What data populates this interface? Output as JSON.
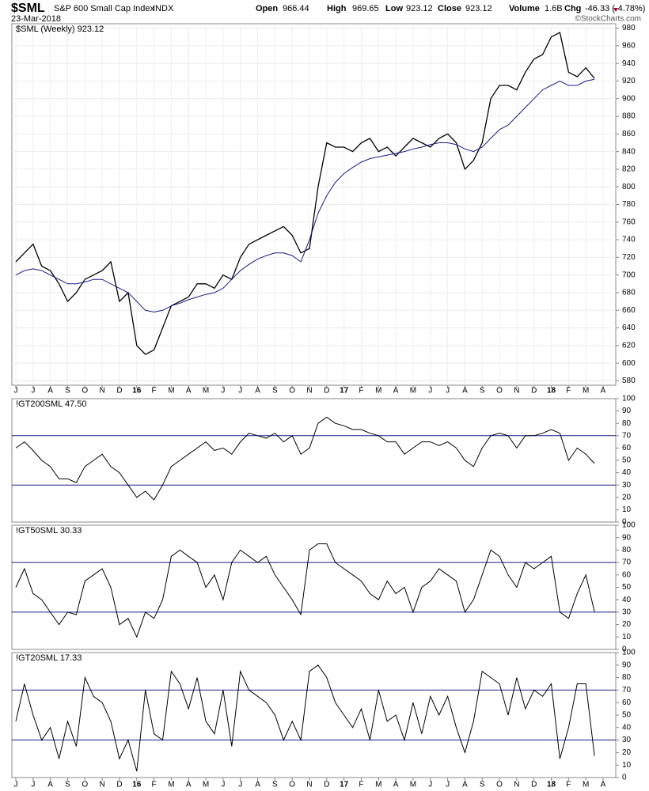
{
  "header": {
    "symbol": "$SML",
    "name": "S&P 600 Small Cap Index",
    "exchange": "INDX",
    "date": "23-Mar-2018",
    "stats": [
      {
        "label": "Open",
        "value": "966.44"
      },
      {
        "label": "High",
        "value": "969.65"
      },
      {
        "label": "Low",
        "value": "923.12"
      },
      {
        "label": "Close",
        "value": "923.12"
      },
      {
        "label": "Volume",
        "value": "1.6B"
      },
      {
        "label": "Chg",
        "value": "-46.33 (-4.78%)"
      }
    ],
    "credit": "©StockCharts.com"
  },
  "chart_data": [
    {
      "type": "line",
      "grid": true,
      "categories": [
        "J",
        null,
        "J",
        null,
        "A",
        null,
        "S",
        null,
        "O",
        null,
        "N",
        null,
        "D",
        null,
        "16",
        null,
        "F",
        null,
        "M",
        null,
        "A",
        null,
        "M",
        null,
        "J",
        null,
        "J",
        null,
        "A",
        null,
        "S",
        null,
        "O",
        null,
        "N",
        null,
        "D",
        null,
        "17",
        null,
        "F",
        null,
        "M",
        null,
        "A",
        null,
        "M",
        null,
        "J",
        null,
        "J",
        null,
        "A",
        null,
        "S",
        null,
        "O",
        null,
        "N",
        null,
        "D",
        null,
        "18",
        null,
        "F",
        null,
        "M",
        null,
        "A"
      ],
      "ylim": [
        575,
        985
      ],
      "yticks": [
        580,
        600,
        620,
        640,
        660,
        680,
        700,
        720,
        740,
        760,
        780,
        800,
        820,
        840,
        860,
        880,
        900,
        920,
        940,
        960,
        980
      ],
      "series": [
        {
          "name": "$SML (Weekly) 923.12",
          "color": "#000000",
          "values": [
            715,
            725,
            735,
            710,
            705,
            690,
            670,
            680,
            695,
            700,
            705,
            715,
            670,
            680,
            620,
            610,
            615,
            640,
            665,
            670,
            675,
            690,
            690,
            685,
            700,
            695,
            720,
            735,
            740,
            745,
            750,
            755,
            745,
            725,
            730,
            800,
            850,
            845,
            845,
            840,
            850,
            855,
            840,
            845,
            835,
            845,
            855,
            850,
            845,
            855,
            860,
            850,
            820,
            830,
            850,
            900,
            915,
            915,
            910,
            930,
            945,
            950,
            970,
            975,
            930,
            925,
            935,
            923,
            null
          ]
        },
        {
          "color": "#1a1a8c",
          "values": [
            700,
            705,
            707,
            705,
            700,
            695,
            690,
            690,
            692,
            695,
            695,
            690,
            685,
            680,
            670,
            660,
            658,
            660,
            665,
            668,
            672,
            675,
            678,
            680,
            685,
            695,
            705,
            712,
            718,
            722,
            725,
            725,
            722,
            715,
            740,
            770,
            790,
            805,
            815,
            822,
            828,
            832,
            834,
            836,
            838,
            840,
            843,
            845,
            848,
            850,
            850,
            848,
            843,
            840,
            845,
            855,
            865,
            870,
            880,
            890,
            900,
            910,
            915,
            920,
            915,
            915,
            920,
            922,
            null
          ]
        }
      ]
    },
    {
      "type": "line",
      "ylim": [
        0,
        100
      ],
      "yticks": [
        0,
        10,
        20,
        30,
        40,
        50,
        60,
        70,
        80,
        90,
        100
      ],
      "hlines": [
        30,
        70
      ],
      "series": [
        {
          "name": "!GT200SML 47.50",
          "color": "#000000",
          "values": [
            60,
            65,
            58,
            50,
            45,
            35,
            35,
            32,
            45,
            50,
            55,
            45,
            40,
            30,
            20,
            25,
            18,
            30,
            45,
            50,
            55,
            60,
            65,
            58,
            60,
            55,
            65,
            72,
            70,
            68,
            72,
            65,
            70,
            55,
            60,
            80,
            85,
            80,
            78,
            75,
            75,
            72,
            70,
            65,
            65,
            55,
            60,
            65,
            65,
            62,
            65,
            60,
            50,
            45,
            60,
            70,
            72,
            70,
            60,
            70,
            70,
            72,
            75,
            72,
            50,
            60,
            55,
            47.5,
            null
          ]
        }
      ]
    },
    {
      "type": "line",
      "ylim": [
        0,
        100
      ],
      "yticks": [
        0,
        10,
        20,
        30,
        40,
        50,
        60,
        70,
        80,
        90,
        100
      ],
      "hlines": [
        30,
        70
      ],
      "series": [
        {
          "name": "!GT50SML 30.33",
          "color": "#000000",
          "values": [
            50,
            65,
            45,
            40,
            30,
            20,
            30,
            28,
            55,
            60,
            65,
            50,
            20,
            25,
            10,
            30,
            25,
            40,
            75,
            80,
            75,
            70,
            50,
            60,
            40,
            70,
            80,
            75,
            70,
            75,
            60,
            50,
            40,
            28,
            80,
            85,
            85,
            70,
            65,
            60,
            55,
            45,
            40,
            55,
            45,
            50,
            30,
            50,
            55,
            65,
            60,
            55,
            30,
            40,
            60,
            80,
            75,
            60,
            50,
            70,
            65,
            70,
            75,
            30,
            25,
            45,
            60,
            30.33,
            null
          ]
        }
      ]
    },
    {
      "type": "line",
      "ylim": [
        0,
        100
      ],
      "yticks": [
        0,
        10,
        20,
        30,
        40,
        50,
        60,
        70,
        80,
        90,
        100
      ],
      "hlines": [
        30,
        70
      ],
      "categories": [
        "J",
        null,
        "J",
        null,
        "A",
        null,
        "S",
        null,
        "O",
        null,
        "N",
        null,
        "D",
        null,
        "16",
        null,
        "F",
        null,
        "M",
        null,
        "A",
        null,
        "M",
        null,
        "J",
        null,
        "J",
        null,
        "A",
        null,
        "S",
        null,
        "O",
        null,
        "N",
        null,
        "D",
        null,
        "17",
        null,
        "F",
        null,
        "M",
        null,
        "A",
        null,
        "M",
        null,
        "J",
        null,
        "J",
        null,
        "A",
        null,
        "S",
        null,
        "O",
        null,
        "N",
        null,
        "D",
        null,
        "18",
        null,
        "F",
        null,
        "M",
        null,
        "A"
      ],
      "series": [
        {
          "name": "!GT20SML 17.33",
          "color": "#000000",
          "values": [
            45,
            75,
            50,
            30,
            40,
            15,
            45,
            25,
            80,
            65,
            60,
            45,
            15,
            30,
            5,
            70,
            35,
            30,
            85,
            75,
            55,
            80,
            45,
            35,
            70,
            25,
            85,
            70,
            65,
            60,
            50,
            30,
            45,
            30,
            85,
            90,
            80,
            60,
            50,
            40,
            55,
            30,
            70,
            45,
            50,
            30,
            60,
            35,
            65,
            50,
            65,
            40,
            20,
            45,
            85,
            80,
            75,
            50,
            80,
            55,
            70,
            65,
            75,
            15,
            40,
            75,
            75,
            17.33,
            null
          ]
        }
      ]
    }
  ]
}
